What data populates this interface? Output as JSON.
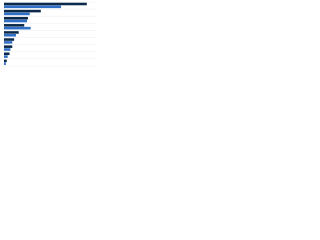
{
  "chart_data": {
    "type": "hbar",
    "categories": [
      null,
      null,
      null,
      null,
      null,
      null,
      null,
      null,
      null
    ],
    "series": [
      {
        "color": "#0b2a4a",
        "values": [
          90,
          40,
          26,
          22,
          16,
          11,
          9,
          6,
          3
        ]
      },
      {
        "color": "#2f6fc7",
        "values": [
          62,
          28,
          25,
          29,
          13,
          9,
          7,
          4,
          2
        ]
      }
    ],
    "xlim": [
      0,
      100
    ],
    "grid": true
  }
}
